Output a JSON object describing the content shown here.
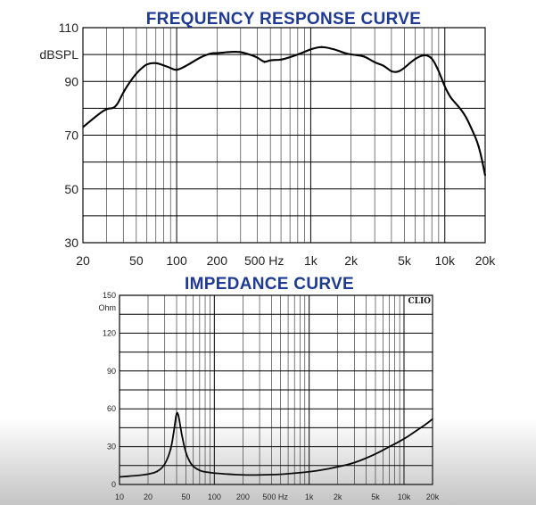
{
  "chart_data": [
    {
      "type": "line",
      "title": "FREQUENCY RESPONSE CURVE",
      "ylabel": "dBSPL",
      "x_scale": "log",
      "xlim": [
        20,
        20000
      ],
      "ylim": [
        30,
        110
      ],
      "y_ticks": [
        "110",
        "90",
        "70",
        "50",
        "30"
      ],
      "x_ticks": [
        "20",
        "50",
        "100",
        "200",
        "500 Hz",
        "1k",
        "2k",
        "5k",
        "10k",
        "20k"
      ],
      "grid": true,
      "series": [
        {
          "x": [
            20,
            25,
            30,
            35,
            40,
            45,
            50,
            55,
            60,
            70,
            80,
            90,
            100,
            120,
            150,
            180,
            200,
            250,
            300,
            350,
            400,
            450,
            500,
            600,
            700,
            800,
            900,
            1000,
            1200,
            1500,
            1800,
            2000,
            2500,
            3000,
            3500,
            4000,
            4500,
            5000,
            6000,
            7000,
            8000,
            9000,
            10000,
            11000,
            12000,
            14000,
            16000,
            18000,
            20000
          ],
          "y": [
            73,
            77,
            80,
            80,
            86,
            90,
            93,
            95,
            96.5,
            97,
            96,
            95,
            94,
            96,
            99,
            100.5,
            100.5,
            101,
            101,
            100,
            99,
            97,
            98,
            98,
            99,
            100,
            101,
            102,
            103,
            102,
            100.5,
            100,
            99.5,
            97,
            96,
            93.5,
            93.5,
            95,
            98.5,
            100,
            99,
            94,
            88,
            84,
            82,
            78,
            72,
            66,
            55
          ]
        }
      ]
    },
    {
      "type": "line",
      "title": "IMPEDANCE CURVE",
      "ylabel": "Ohm",
      "annotation": "CLIO",
      "x_scale": "log",
      "xlim": [
        10,
        20000
      ],
      "ylim": [
        0,
        150
      ],
      "y_ticks": [
        "150",
        "Ohm",
        "120",
        "90",
        "60",
        "30",
        "0"
      ],
      "x_ticks": [
        "10",
        "20",
        "50",
        "100",
        "200",
        "500 Hz",
        "1k",
        "2k",
        "5k",
        "10k",
        "20k"
      ],
      "grid": true,
      "series": [
        {
          "x": [
            10,
            15,
            20,
            25,
            30,
            35,
            38,
            40,
            42,
            45,
            50,
            55,
            60,
            70,
            80,
            100,
            150,
            200,
            300,
            500,
            700,
            1000,
            1500,
            2000,
            3000,
            5000,
            7000,
            10000,
            12000,
            15000,
            18000,
            20000
          ],
          "y": [
            6,
            7,
            8,
            10,
            15,
            28,
            45,
            58,
            55,
            40,
            25,
            18,
            14,
            11,
            10,
            9,
            8,
            7.5,
            7.5,
            8,
            9,
            10,
            12,
            14,
            17,
            24,
            30,
            36,
            40,
            45,
            49,
            52
          ]
        }
      ]
    }
  ]
}
